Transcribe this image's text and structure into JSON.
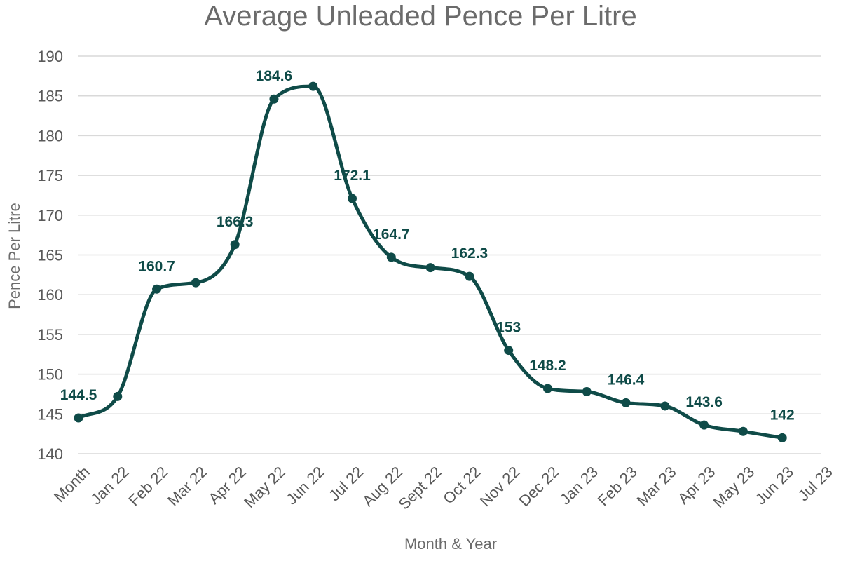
{
  "chart_data": {
    "type": "line",
    "title": "Average Unleaded Pence Per Litre",
    "xlabel": "Month & Year",
    "ylabel": "Pence Per Litre",
    "ylim": [
      140,
      190
    ],
    "yticks": [
      140,
      145,
      150,
      155,
      160,
      165,
      170,
      175,
      180,
      185,
      190
    ],
    "grid": true,
    "smooth": true,
    "color": "#0f4b48",
    "categories": [
      "Month",
      "Jan 22",
      "Feb 22",
      "Mar 22",
      "Apr 22",
      "May 22",
      "Jun 22",
      "Jul 22",
      "Aug 22",
      "Sept 22",
      "Oct 22",
      "Nov 22",
      "Dec 22",
      "Jan 23",
      "Feb 23",
      "Mar 23",
      "Apr 23",
      "May 23",
      "Jun 23",
      "Jul 23"
    ],
    "series": [
      {
        "values": [
          144.5,
          147.2,
          160.7,
          161.5,
          166.3,
          184.6,
          186.2,
          172.1,
          164.7,
          163.4,
          162.3,
          153,
          148.2,
          147.8,
          146.4,
          146.0,
          143.6,
          142.8,
          142,
          null
        ],
        "labels": [
          "144.5",
          "",
          "160.7",
          "",
          "166.3",
          "184.6",
          "",
          "172.1",
          "164.7",
          "",
          "162.3",
          "153",
          "148.2",
          "",
          "146.4",
          "",
          "143.6",
          "",
          "142",
          ""
        ]
      }
    ]
  }
}
